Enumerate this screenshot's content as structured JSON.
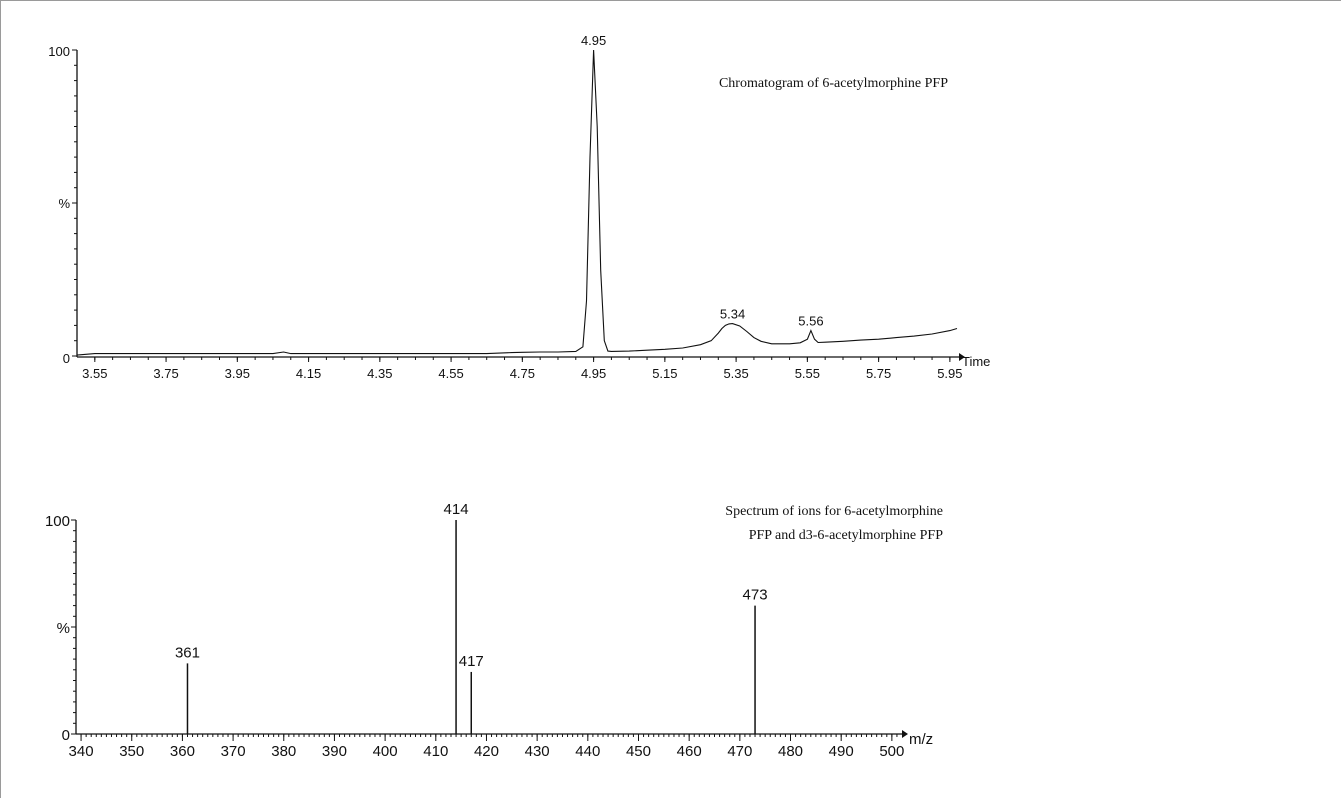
{
  "chart_data": [
    {
      "type": "line",
      "title": "Chromatogram of 6-acetylmorphine PFP",
      "xlabel": "Time",
      "ylabel": "%",
      "xlim": [
        3.5,
        5.97
      ],
      "ylim": [
        0,
        100
      ],
      "x_ticks": [
        "3.55",
        "3.75",
        "3.95",
        "4.15",
        "4.35",
        "4.55",
        "4.75",
        "4.95",
        "5.15",
        "5.35",
        "5.55",
        "5.75",
        "5.95"
      ],
      "y_ticks": [
        "0",
        "%",
        "100"
      ],
      "peak_labels": [
        {
          "x": 4.95,
          "y": 100,
          "text": "4.95"
        },
        {
          "x": 5.34,
          "y": 10.6,
          "text": "5.34"
        },
        {
          "x": 5.56,
          "y": 8.3,
          "text": "5.56"
        }
      ],
      "x": [
        3.5,
        3.55,
        3.6,
        3.7,
        3.8,
        3.9,
        4.0,
        4.05,
        4.08,
        4.1,
        4.15,
        4.25,
        4.35,
        4.45,
        4.55,
        4.65,
        4.72,
        4.75,
        4.8,
        4.85,
        4.9,
        4.92,
        4.93,
        4.94,
        4.95,
        4.96,
        4.97,
        4.98,
        4.99,
        5.0,
        5.05,
        5.1,
        5.15,
        5.2,
        5.25,
        5.28,
        5.3,
        5.31,
        5.32,
        5.33,
        5.34,
        5.36,
        5.38,
        5.4,
        5.42,
        5.45,
        5.5,
        5.53,
        5.55,
        5.56,
        5.57,
        5.58,
        5.6,
        5.65,
        5.7,
        5.75,
        5.8,
        5.85,
        5.9,
        5.95,
        5.97
      ],
      "values": [
        0.3,
        0.8,
        0.8,
        0.8,
        0.8,
        0.8,
        0.8,
        0.8,
        1.3,
        0.8,
        0.8,
        0.8,
        0.8,
        0.8,
        0.8,
        0.8,
        1.1,
        1.2,
        1.3,
        1.3,
        1.5,
        3.0,
        18.0,
        65.0,
        100.0,
        75.0,
        28.0,
        5.0,
        1.6,
        1.5,
        1.6,
        1.9,
        2.2,
        2.6,
        3.7,
        5.0,
        7.5,
        9.0,
        10.0,
        10.5,
        10.6,
        9.8,
        8.0,
        6.0,
        4.8,
        4.0,
        4.0,
        4.3,
        5.5,
        8.3,
        5.5,
        4.4,
        4.5,
        4.8,
        5.2,
        5.5,
        6.0,
        6.5,
        7.2,
        8.3,
        9.0
      ],
      "annotation": "Chromatogram of 6-acetylmorphine PFP"
    },
    {
      "type": "bar",
      "title": "Spectrum of ions for 6-acetylmorphine PFP and d3-6-acetylmorphine PFP",
      "title_lines": [
        "Spectrum of ions for 6-acetylmorphine",
        "PFP and d3-6-acetylmorphine PFP"
      ],
      "xlabel": "m/z",
      "ylabel": "%",
      "xlim": [
        339,
        502
      ],
      "ylim": [
        0,
        100
      ],
      "x_ticks": [
        "340",
        "350",
        "360",
        "370",
        "380",
        "390",
        "400",
        "410",
        "420",
        "430",
        "440",
        "450",
        "460",
        "470",
        "480",
        "490",
        "500"
      ],
      "y_ticks": [
        "0",
        "%",
        "100"
      ],
      "peaks": [
        {
          "mz": 361,
          "value": 33,
          "label": "361"
        },
        {
          "mz": 414,
          "value": 100,
          "label": "414"
        },
        {
          "mz": 417,
          "value": 29,
          "label": "417"
        },
        {
          "mz": 473,
          "value": 60,
          "label": "473"
        }
      ]
    }
  ]
}
